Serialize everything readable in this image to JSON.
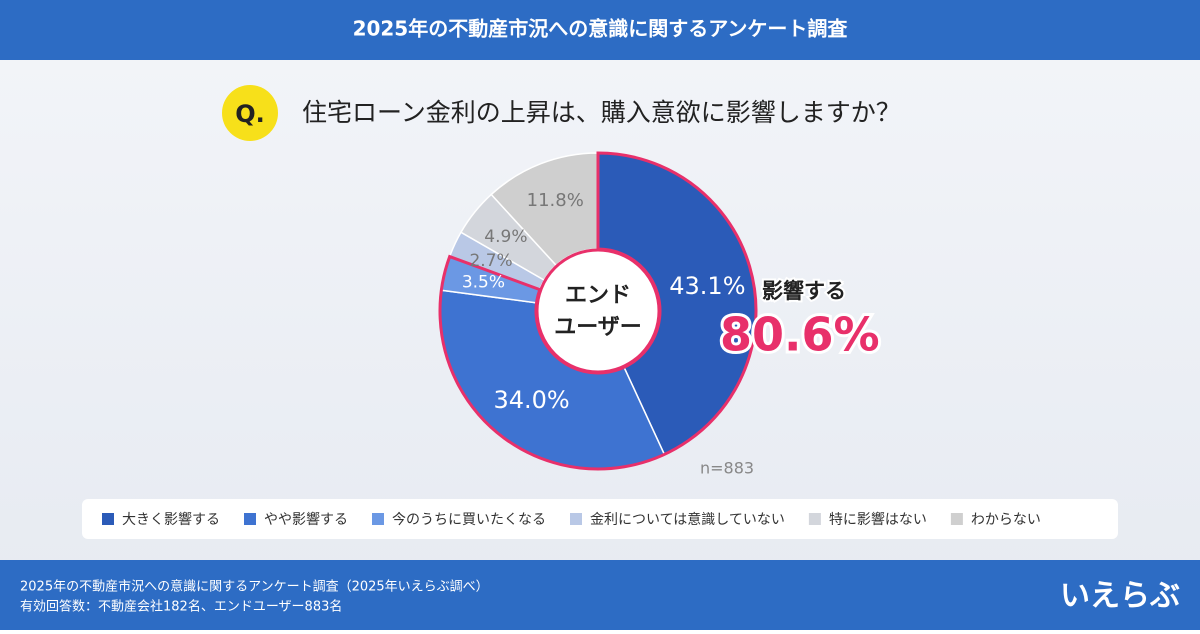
{
  "header": {
    "title": "2025年の不動産市況への意識に関するアンケート調査"
  },
  "question": {
    "marker": "Q.",
    "text": "住宅ローン金利の上昇は、購入意欲に影響しますか？"
  },
  "chart_data": {
    "type": "donut",
    "center_label": [
      "エンド",
      "ユーザー"
    ],
    "note": "n=883",
    "categories": [
      "大きく影響する",
      "やや影響する",
      "今のうちに買いたくなる",
      "金利については意識していない",
      "特に影響はない",
      "わからない"
    ],
    "values": [
      43.1,
      34.0,
      3.5,
      2.7,
      4.9,
      11.8
    ],
    "value_labels": [
      "43.1%",
      "34.0%",
      "3.5%",
      "2.7%",
      "4.9%",
      "11.8%"
    ],
    "colors": [
      "#2b5bb8",
      "#3e73d1",
      "#6b98e4",
      "#b9c8e6",
      "#d3d6dc",
      "#cfcfcf"
    ],
    "highlight": {
      "label": "影響する",
      "value_label": "80.6%"
    }
  },
  "footer": {
    "lines": [
      "2025年の不動産市況への意識に関するアンケート調査（2025年いえらぶ調べ）",
      "有効回答数：不動産会社182名、エンドユーザー883名"
    ],
    "logo": "いえらぶ"
  }
}
